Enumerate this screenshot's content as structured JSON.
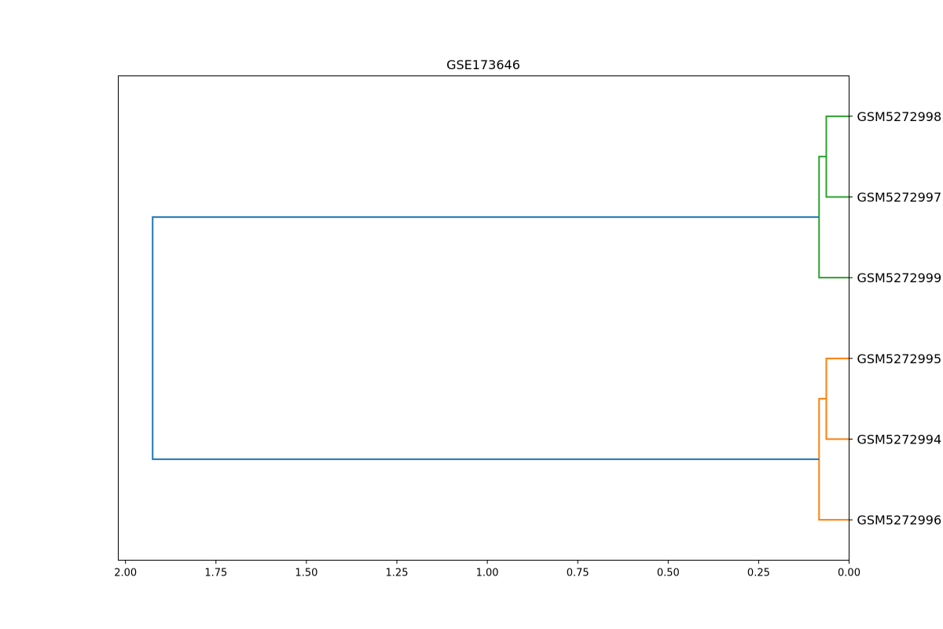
{
  "chart_data": {
    "type": "dendrogram",
    "title": "GSE173646",
    "orientation": "left",
    "xlim": [
      2.02,
      0.0
    ],
    "x_ticks": [
      2.0,
      1.75,
      1.5,
      1.25,
      1.0,
      0.75,
      0.5,
      0.25,
      0.0
    ],
    "x_tick_labels": [
      "2.00",
      "1.75",
      "1.50",
      "1.25",
      "1.00",
      "0.75",
      "0.50",
      "0.25",
      "0.00"
    ],
    "xlabel": "",
    "ylabel": "",
    "grid": false,
    "leaves_top_to_bottom": [
      "GSM5272998",
      "GSM5272997",
      "GSM5272999",
      "GSM5272995",
      "GSM5272994",
      "GSM5272996"
    ],
    "links": [
      {
        "children": [
          "GSM5272998",
          "GSM5272997"
        ],
        "height": 0.063,
        "color": "#2ca02c"
      },
      {
        "children": [
          "GSM5272998+GSM5272997",
          "GSM5272999"
        ],
        "height": 0.083,
        "color": "#2ca02c"
      },
      {
        "children": [
          "GSM5272995",
          "GSM5272994"
        ],
        "height": 0.063,
        "color": "#ff7f0e"
      },
      {
        "children": [
          "GSM5272995+GSM5272994",
          "GSM5272996"
        ],
        "height": 0.083,
        "color": "#ff7f0e"
      },
      {
        "children": [
          "cluster-top",
          "cluster-bottom"
        ],
        "height": 1.925,
        "color": "#1f77b4"
      }
    ]
  }
}
